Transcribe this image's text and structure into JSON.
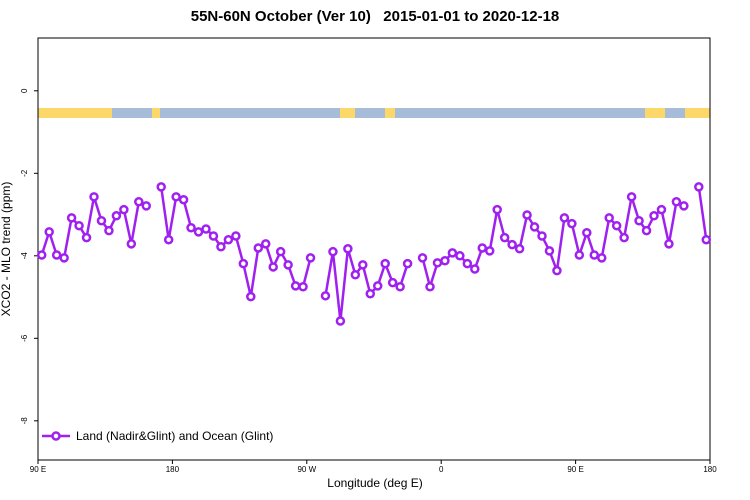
{
  "chart_data": {
    "type": "line",
    "title": "55N-60N October (Ver 10)   2015-01-01 to 2020-12-18",
    "x_label": "Longitude (deg E)",
    "y_label": "XCO2 - MLO trend (ppm)",
    "x": [
      92.5,
      97.5,
      102.5,
      107.5,
      112.5,
      117.5,
      122.5,
      127.5,
      132.5,
      137.5,
      142.5,
      147.5,
      152.5,
      157.5,
      162.5,
      167.5,
      172.5,
      177.5,
      182.5,
      187.5,
      192.5,
      197.5,
      202.5,
      207.5,
      212.5,
      217.5,
      222.5,
      227.5,
      232.5,
      237.5,
      242.5,
      247.5,
      252.5,
      257.5,
      262.5,
      267.5,
      272.5,
      277.5,
      282.5,
      287.5,
      292.5,
      297.5,
      302.5,
      307.5,
      312.5,
      317.5,
      322.5,
      327.5,
      332.5,
      337.5,
      342.5,
      347.5,
      352.5,
      357.5,
      362.5,
      367.5,
      372.5,
      377.5,
      382.5,
      387.5,
      392.5,
      397.5,
      402.5,
      407.5,
      412.5,
      417.5,
      422.5,
      427.5,
      432.5,
      437.5,
      442.5,
      447.5,
      452.5,
      457.5,
      462.5,
      467.5,
      472.5,
      477.5,
      482.5,
      487.5,
      492.5,
      497.5,
      502.5,
      507.5,
      512.5,
      517.5,
      522.5,
      527.5,
      532.5,
      537.5
    ],
    "series": [
      {
        "name": "Land (Nadir&Glint) and Ocean (Glint)",
        "color": "#a020f0",
        "values": [
          -3.98,
          -3.42,
          -3.98,
          -4.05,
          -3.08,
          -3.27,
          -3.56,
          -2.57,
          -3.15,
          -3.39,
          -3.03,
          -2.88,
          -3.71,
          -2.69,
          -2.79,
          null,
          -2.33,
          -3.61,
          -2.57,
          -2.64,
          -3.32,
          -3.42,
          -3.35,
          -3.52,
          -3.78,
          -3.61,
          -3.52,
          -4.19,
          -4.99,
          -3.81,
          -3.71,
          -4.27,
          -3.9,
          -4.22,
          -4.73,
          -4.75,
          -4.05,
          null,
          -4.97,
          -3.9,
          -5.58,
          -3.83,
          -4.46,
          -4.22,
          -4.92,
          -4.73,
          -4.19,
          -4.65,
          -4.75,
          -4.19,
          null,
          -4.05,
          -4.75,
          -4.17,
          -4.12,
          -3.93,
          -4.0,
          -4.19,
          -4.32,
          -3.81,
          -3.88,
          -2.88,
          -3.56,
          -3.73,
          -3.83,
          -3.01,
          -3.3,
          -3.52,
          -3.88,
          -4.36,
          -3.08,
          -3.22,
          -3.98,
          -3.44,
          -3.98,
          -4.05,
          -3.08,
          -3.27,
          -3.56,
          -2.57,
          -3.15,
          -3.39,
          -3.03,
          -2.88,
          -3.71,
          -2.69,
          -2.79,
          null,
          -2.33,
          -3.61
        ]
      }
    ],
    "xlim": [
      90,
      540
    ],
    "xticks": [
      {
        "value": 90,
        "label": "90 E"
      },
      180,
      {
        "value": 270,
        "label": "90 W"
      },
      {
        "value": 360,
        "label": "0"
      },
      {
        "value": 450,
        "label": "90 E"
      },
      {
        "value": 540,
        "label": "180"
      }
    ],
    "ylim": [
      -8.95,
      1.28
    ],
    "yticks": [
      0,
      -2,
      -4,
      -6,
      -8
    ],
    "grid": false,
    "legend": "bottom-left"
  }
}
